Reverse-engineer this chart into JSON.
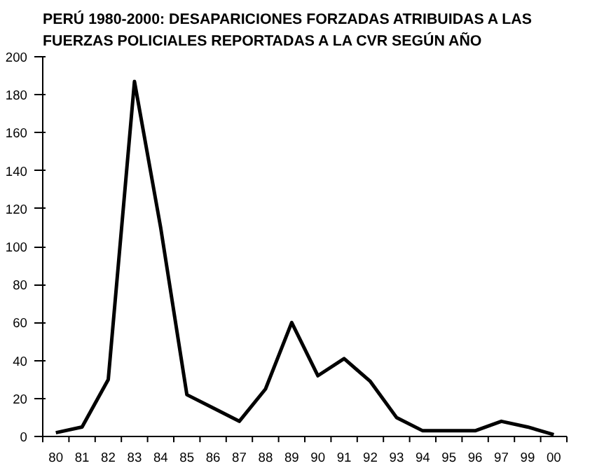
{
  "chart_data": {
    "type": "line",
    "title": "PERÚ 1980-2000: DESAPARICIONES FORZADAS ATRIBUIDAS A LAS\nFUERZAS POLICIALES REPORTADAS A LA CVR SEGÚN AÑO",
    "categories": [
      "80",
      "81",
      "82",
      "83",
      "84",
      "85",
      "86",
      "87",
      "88",
      "89",
      "90",
      "91",
      "92",
      "93",
      "94",
      "95",
      "96",
      "97",
      "99",
      "00"
    ],
    "series": [
      {
        "color": "#000000",
        "values": [
          2,
          5,
          30,
          187,
          110,
          22,
          15,
          8,
          25,
          60,
          32,
          41,
          29,
          10,
          3,
          3,
          3,
          8,
          5,
          1
        ]
      }
    ],
    "ylim": [
      0,
      200
    ],
    "yticks": [
      0,
      20,
      40,
      60,
      80,
      100,
      120,
      140,
      160,
      180,
      200
    ],
    "grid": false,
    "marker": "none",
    "line_style": "solid"
  }
}
